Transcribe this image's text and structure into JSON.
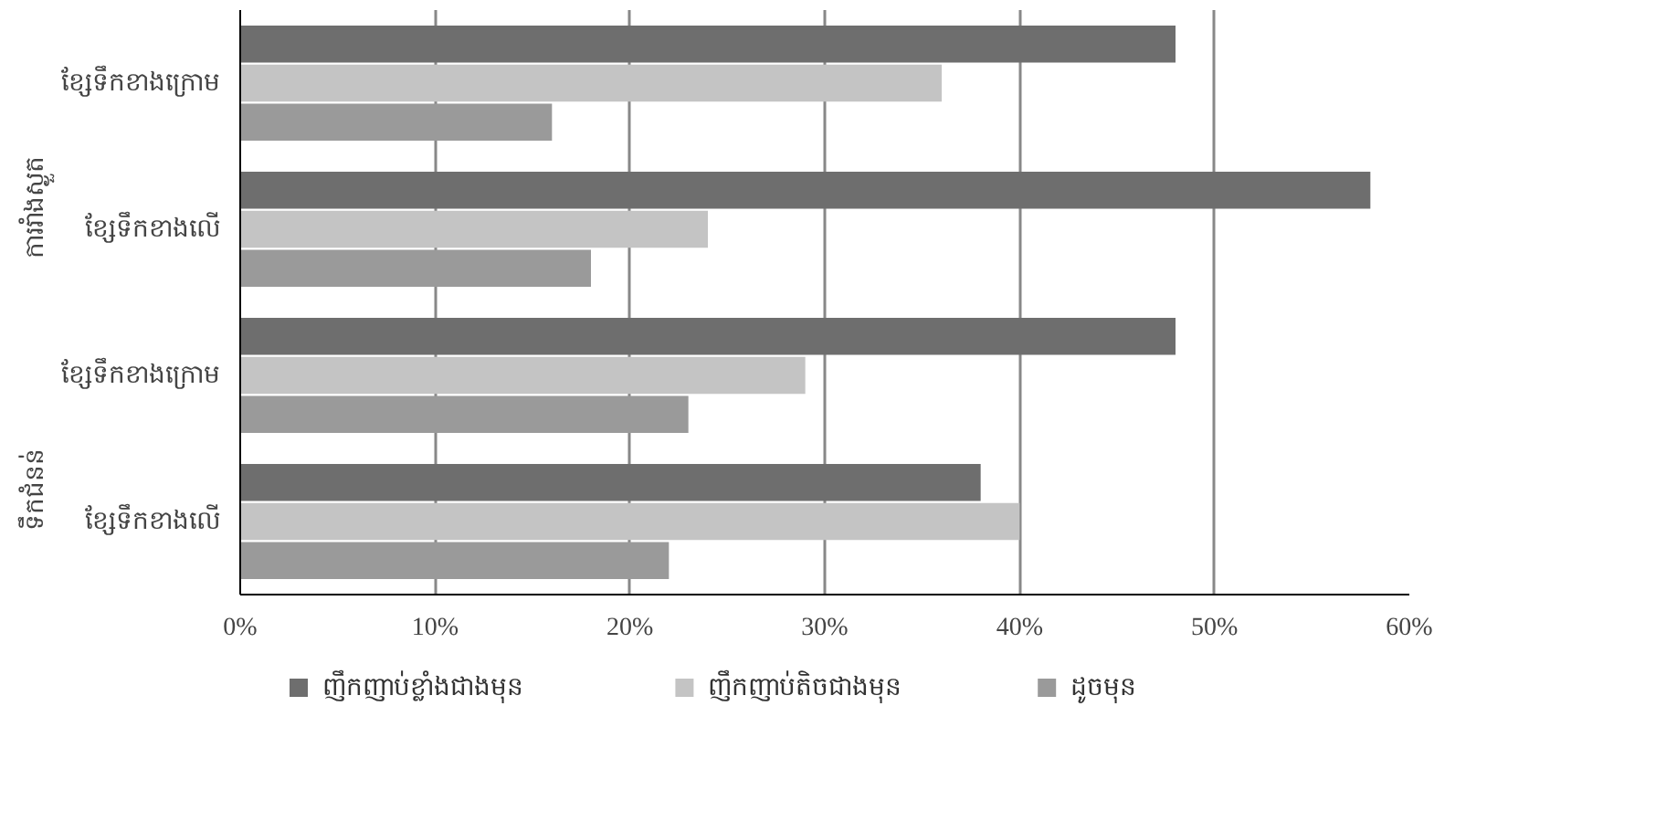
{
  "chart_data": {
    "type": "bar",
    "orientation": "horizontal",
    "categories": [
      "ខ្សែទឹកខាងក្រោម",
      "ខ្សែទឹកខាងលើ",
      "ខ្សែទឹកខាងក្រោម",
      "ខ្សែទឹកខាងលើ"
    ],
    "annotations": [
      "ការរាំងស្ងួត",
      "ទឹកជំនន់"
    ],
    "series": [
      {
        "name": "ញឹកញាប់ខ្លាំងជាងមុន",
        "color": "#6e6e6e",
        "values": [
          48,
          58,
          48,
          38
        ]
      },
      {
        "name": "ញឹកញាប់តិចជាងមុន",
        "color": "#c4c4c4",
        "values": [
          36,
          24,
          29,
          40
        ]
      },
      {
        "name": "ដូចមុន",
        "color": "#9a9a9a",
        "values": [
          16,
          18,
          23,
          22
        ]
      }
    ],
    "xlim": [
      0,
      60
    ],
    "xticks": [
      {
        "value": 0,
        "label": "0%"
      },
      {
        "value": 10,
        "label": "10%"
      },
      {
        "value": 20,
        "label": "20%"
      },
      {
        "value": 30,
        "label": "30%"
      },
      {
        "value": 40,
        "label": "40%"
      },
      {
        "value": 50,
        "label": "50%"
      },
      {
        "value": 60,
        "label": "60%"
      }
    ],
    "grid": "x",
    "legend": "bottom"
  }
}
